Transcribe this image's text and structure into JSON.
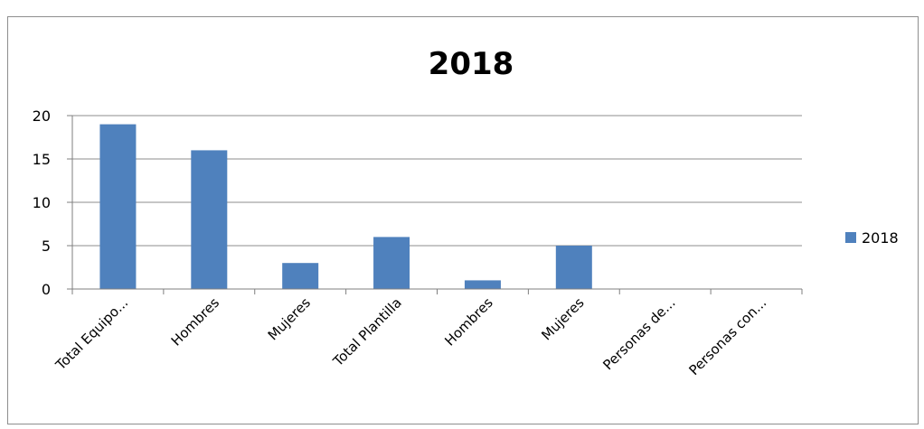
{
  "chart_data": {
    "type": "bar",
    "title": "2018",
    "xlabel": "",
    "ylabel": "",
    "categories": [
      "Total Equipo...",
      "Hombres",
      "Mujeres",
      "Total Plantilla",
      "Hombres",
      "Mujeres",
      "Personas de...",
      "Personas con..."
    ],
    "series": [
      {
        "name": "2018",
        "values": [
          19,
          16,
          3,
          6,
          1,
          5,
          0,
          0
        ]
      }
    ],
    "ylim": [
      0,
      20
    ],
    "yticks": [
      "0",
      "5",
      "10",
      "15",
      "20"
    ],
    "grid": true,
    "legend_position": "right",
    "colors": {
      "bar": "#4f81bd",
      "grid": "#8c8c8c",
      "axis": "#7f7f7f"
    }
  }
}
